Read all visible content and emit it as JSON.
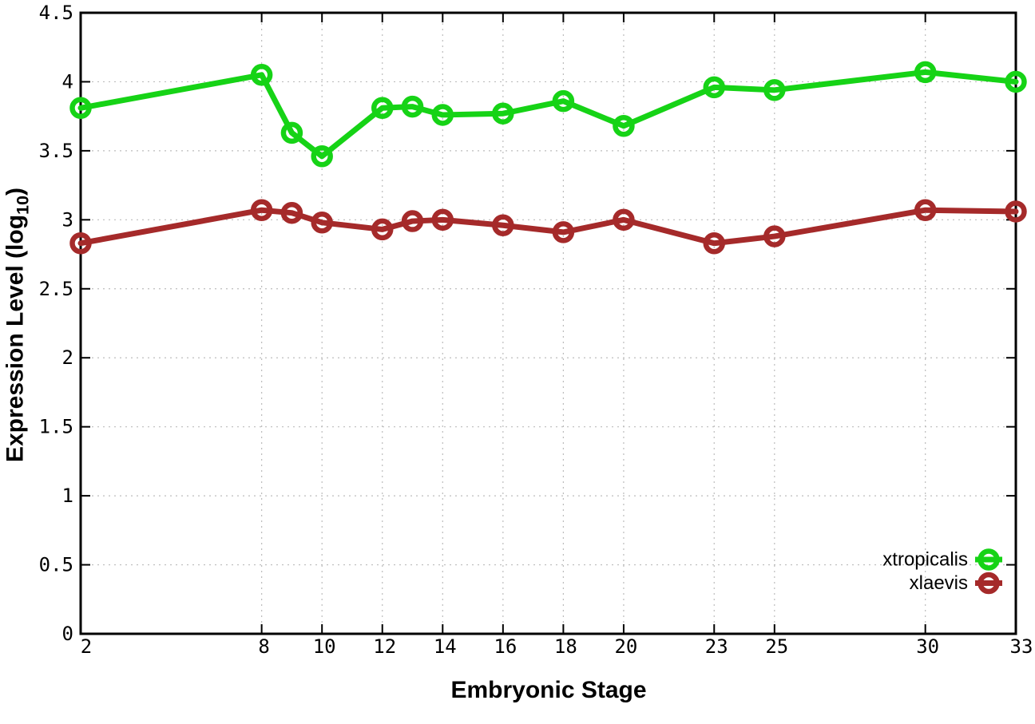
{
  "chart_data": {
    "type": "line",
    "title": "",
    "xlabel": "Embryonic Stage",
    "ylabel": "Expression Level (log10)",
    "ylabel_parts": {
      "prefix": "Expression Level (log",
      "sub": "10",
      "suffix": ")"
    },
    "x": [
      2,
      8,
      9,
      10,
      12,
      13,
      14,
      16,
      18,
      20,
      23,
      25,
      30,
      33
    ],
    "xlim": [
      2,
      33
    ],
    "ylim": [
      0,
      4.5
    ],
    "xticks": [
      {
        "v": 2,
        "label": "2"
      },
      {
        "v": 8,
        "label": "8"
      },
      {
        "v": 10,
        "label": "10"
      },
      {
        "v": 12,
        "label": "12"
      },
      {
        "v": 14,
        "label": "14"
      },
      {
        "v": 16,
        "label": "16"
      },
      {
        "v": 18,
        "label": "18"
      },
      {
        "v": 20,
        "label": "20"
      },
      {
        "v": 23,
        "label": "23"
      },
      {
        "v": 25,
        "label": "25"
      },
      {
        "v": 30,
        "label": "30"
      },
      {
        "v": 33,
        "label": "33"
      }
    ],
    "yticks": [
      {
        "v": 0,
        "label": "0"
      },
      {
        "v": 0.5,
        "label": "0.5"
      },
      {
        "v": 1,
        "label": "1"
      },
      {
        "v": 1.5,
        "label": "1.5"
      },
      {
        "v": 2,
        "label": "2"
      },
      {
        "v": 2.5,
        "label": "2.5"
      },
      {
        "v": 3,
        "label": "3"
      },
      {
        "v": 3.5,
        "label": "3.5"
      },
      {
        "v": 4,
        "label": "4"
      },
      {
        "v": 4.5,
        "label": "4.5"
      }
    ],
    "grid": true,
    "legend_position": "inside-bottom-right",
    "series": [
      {
        "name": "xtropicalis",
        "color": "#16d316",
        "marker": "open-circle",
        "values": [
          3.81,
          4.05,
          3.63,
          3.46,
          3.81,
          3.82,
          3.76,
          3.77,
          3.86,
          3.68,
          3.96,
          3.94,
          4.07,
          4.0
        ]
      },
      {
        "name": "xlaevis",
        "color": "#a52a2a",
        "marker": "open-circle",
        "values": [
          2.83,
          3.07,
          3.05,
          2.98,
          2.93,
          2.99,
          3.0,
          2.96,
          2.91,
          3.0,
          2.83,
          2.88,
          3.07,
          3.06
        ]
      }
    ],
    "colors": {
      "border": "#000000",
      "grid": "#bcbcbc",
      "text": "#000000"
    }
  }
}
